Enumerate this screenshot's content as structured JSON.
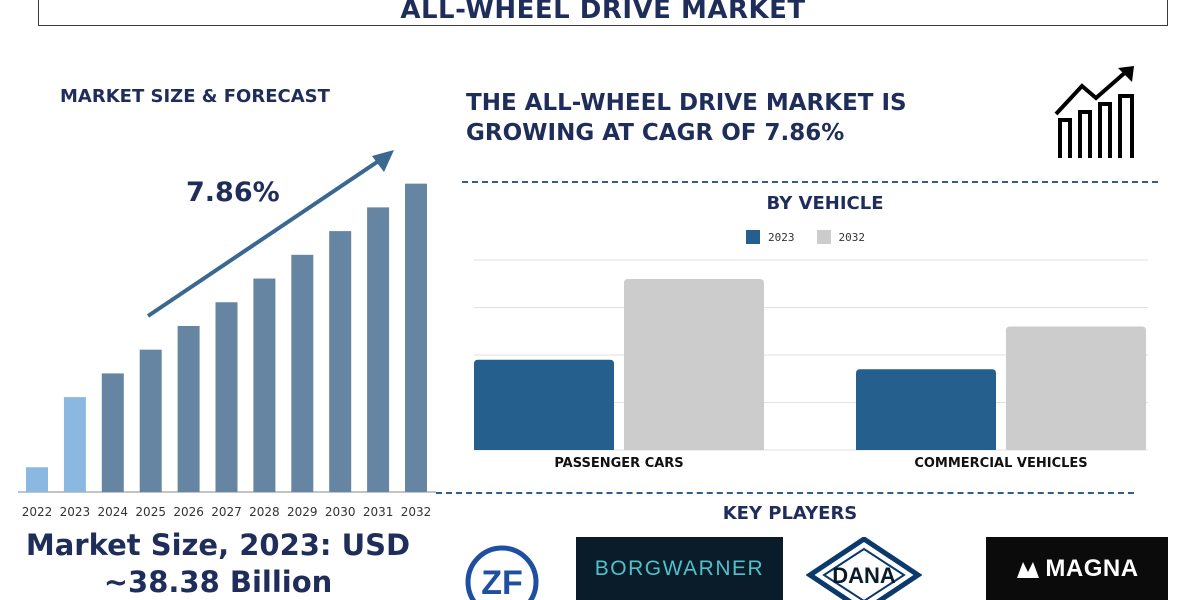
{
  "title": "ALL-WHEEL DRIVE MARKET",
  "left_panel": {
    "heading": "MARKET SIZE & FORECAST",
    "cagr_label": "7.86%",
    "market_size_line1": "Market Size, 2023: USD",
    "market_size_line2": "~38.38 Billion"
  },
  "headline_line1": "THE ALL-WHEEL DRIVE MARKET IS",
  "headline_line2": "GROWING AT CAGR OF 7.86%",
  "by_vehicle": {
    "heading": "BY VEHICLE"
  },
  "key_players": {
    "heading": "KEY PLAYERS",
    "logos": [
      "ZF",
      "BORGWARNER",
      "DANA",
      "MAGNA"
    ]
  },
  "colors": {
    "navy": "#1f2d5a",
    "bar_light_blue": "#8ab8e0",
    "bar_steel": "#6685a3",
    "bar_2023": "#255f8e",
    "bar_2032": "#cccccc",
    "arrow": "#3a6890"
  },
  "chart_data": [
    {
      "type": "bar",
      "title": "MARKET SIZE & FORECAST",
      "categories": [
        "2022",
        "2023",
        "2024",
        "2025",
        "2026",
        "2027",
        "2028",
        "2029",
        "2030",
        "2031",
        "2032"
      ],
      "values": [
        24,
        92,
        115,
        138,
        161,
        184,
        207,
        230,
        253,
        276,
        299
      ],
      "highlighted": [
        "2022",
        "2023"
      ],
      "annotation": "7.86%",
      "ylim": [
        0,
        320
      ],
      "grid": false
    },
    {
      "type": "bar",
      "title": "BY VEHICLE",
      "categories": [
        "PASSENGER CARS",
        "COMMERCIAL VEHICLES"
      ],
      "series": [
        {
          "name": "2023",
          "values": [
            38,
            34
          ]
        },
        {
          "name": "2032",
          "values": [
            72,
            52
          ]
        }
      ],
      "ylim": [
        0,
        80
      ],
      "grid": true,
      "legend": "top-center"
    }
  ]
}
